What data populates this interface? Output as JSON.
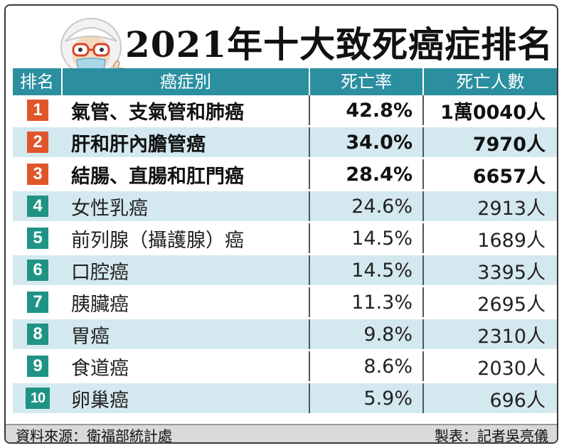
{
  "title": "2021年十大致死癌症排名",
  "header": {
    "rank": "排名",
    "cancer": "癌症別",
    "rate": "死亡率",
    "deaths": "死亡人數"
  },
  "rows": [
    {
      "rank": "1",
      "name": "氣管、支氣管和肺癌",
      "rate": "42.8%",
      "deaths": "1萬0040人"
    },
    {
      "rank": "2",
      "name": "肝和肝內膽管癌",
      "rate": "34.0%",
      "deaths": "7970人"
    },
    {
      "rank": "3",
      "name": "結腸、直腸和肛門癌",
      "rate": "28.4%",
      "deaths": "6657人"
    },
    {
      "rank": "4",
      "name": "女性乳癌",
      "rate": "24.6%",
      "deaths": "2913人"
    },
    {
      "rank": "5",
      "name": "前列腺（攝護腺）癌",
      "rate": "14.5%",
      "deaths": "1689人"
    },
    {
      "rank": "6",
      "name": "口腔癌",
      "rate": "14.5%",
      "deaths": "3395人"
    },
    {
      "rank": "7",
      "name": "胰臟癌",
      "rate": "11.3%",
      "deaths": "2695人"
    },
    {
      "rank": "8",
      "name": "胃癌",
      "rate": "9.8%",
      "deaths": "2310人"
    },
    {
      "rank": "9",
      "name": "食道癌",
      "rate": "8.6%",
      "deaths": "2030人"
    },
    {
      "rank": "10",
      "name": "卵巢癌",
      "rate": "5.9%",
      "deaths": "696人"
    }
  ],
  "footer": {
    "source": "資料來源：衛福部統計處",
    "credit": "製表：記者吳亮儀"
  },
  "colors": {
    "header_bg": "#2b8fa0",
    "top3_badge": "#e0562a",
    "other_badge": "#1f9384",
    "even_row": "#d4e9ef"
  }
}
